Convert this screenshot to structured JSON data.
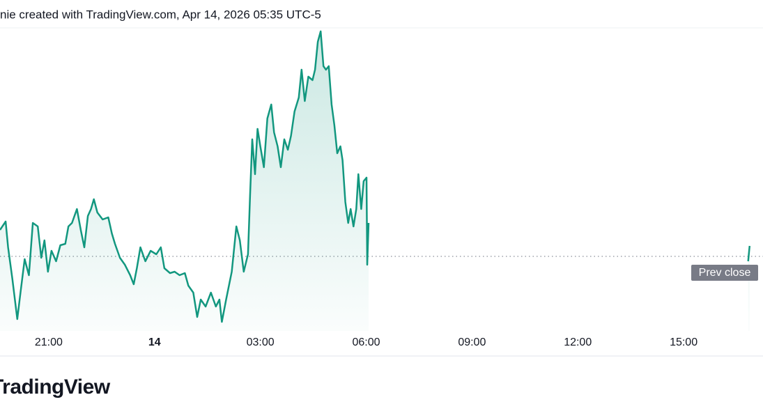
{
  "chart_data": {
    "type": "line",
    "header": "nie created with TradingView.com, Apr 14, 2026 05:35 UTC-5",
    "brand": "TradingView",
    "color": "#12977f",
    "xlim": [
      -4.38,
      17.25
    ],
    "ylim": [
      0,
      435
    ],
    "xticks": [
      {
        "value": -3,
        "label": "21:00"
      },
      {
        "value": 0,
        "label": "14"
      },
      {
        "value": 3,
        "label": "03:00"
      },
      {
        "value": 6,
        "label": "06:00"
      },
      {
        "value": 9,
        "label": "09:00"
      },
      {
        "value": 12,
        "label": "12:00"
      },
      {
        "value": 15,
        "label": "15:00"
      }
    ],
    "prev_close": {
      "value": 107,
      "label": "Prev close"
    },
    "x": [
      -4.38,
      -4.22,
      -4.15,
      -4.03,
      -3.89,
      -3.8,
      -3.68,
      -3.56,
      -3.45,
      -3.31,
      -3.21,
      -3.12,
      -3.02,
      -2.92,
      -2.79,
      -2.67,
      -2.53,
      -2.44,
      -2.34,
      -2.2,
      -2.09,
      -1.99,
      -1.89,
      -1.8,
      -1.72,
      -1.62,
      -1.47,
      -1.31,
      -1.21,
      -1.12,
      -0.98,
      -0.84,
      -0.69,
      -0.59,
      -0.5,
      -0.4,
      -0.26,
      -0.11,
      0.05,
      0.18,
      0.28,
      0.44,
      0.57,
      0.71,
      0.86,
      0.96,
      1.1,
      1.21,
      1.31,
      1.45,
      1.6,
      1.74,
      1.84,
      1.91,
      2.03,
      2.19,
      2.32,
      2.42,
      2.53,
      2.65,
      2.71,
      2.77,
      2.85,
      2.92,
      3.0,
      3.1,
      3.2,
      3.31,
      3.39,
      3.49,
      3.58,
      3.68,
      3.78,
      3.87,
      3.97,
      4.09,
      4.17,
      4.26,
      4.36,
      4.48,
      4.55,
      4.63,
      4.71,
      4.79,
      4.86,
      4.94,
      5.02,
      5.1,
      5.18,
      5.27,
      5.33,
      5.41,
      5.49,
      5.56,
      5.64,
      5.72,
      5.78,
      5.86,
      5.93,
      6.01,
      6.03,
      6.07,
      10.0,
      16.83,
      16.87
    ],
    "values": [
      145,
      157,
      120,
      75,
      17,
      55,
      103,
      80,
      155,
      150,
      105,
      130,
      85,
      115,
      100,
      123,
      125,
      150,
      155,
      175,
      145,
      120,
      165,
      175,
      189,
      170,
      160,
      163,
      140,
      125,
      105,
      95,
      80,
      67,
      90,
      120,
      100,
      115,
      110,
      120,
      90,
      83,
      85,
      80,
      83,
      65,
      55,
      20,
      45,
      35,
      55,
      35,
      45,
      13,
      45,
      85,
      150,
      130,
      85,
      110,
      195,
      275,
      225,
      290,
      265,
      235,
      305,
      325,
      285,
      265,
      235,
      275,
      260,
      280,
      315,
      335,
      375,
      330,
      365,
      360,
      375,
      415,
      430,
      380,
      375,
      380,
      325,
      295,
      255,
      265,
      245,
      185,
      155,
      175,
      150,
      175,
      225,
      175,
      215,
      220,
      95,
      155,
      null,
      100,
      122
    ]
  }
}
